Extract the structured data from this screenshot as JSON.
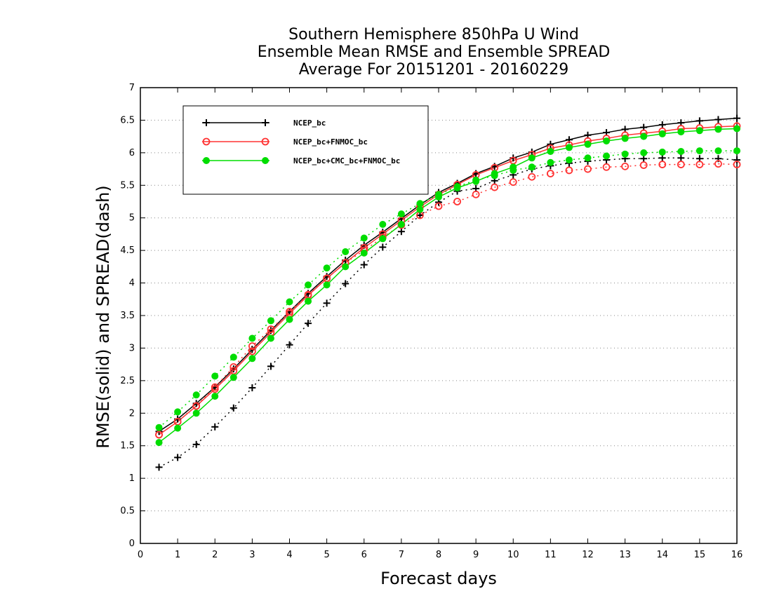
{
  "chart_data": {
    "type": "line",
    "title_lines": [
      "Southern Hemisphere 850hPa U Wind",
      "Ensemble Mean RMSE and Ensemble SPREAD",
      "Average For 20151201 - 20160229"
    ],
    "xlabel": "Forecast days",
    "ylabel": "RMSE(solid) and SPREAD(dash)",
    "xlim": [
      0,
      16
    ],
    "ylim": [
      0,
      7
    ],
    "x_ticks": [
      "0",
      "1",
      "2",
      "3",
      "4",
      "5",
      "6",
      "7",
      "8",
      "9",
      "10",
      "11",
      "12",
      "13",
      "14",
      "15",
      "16"
    ],
    "y_ticks": [
      "0",
      "0.5",
      "1",
      "1.5",
      "2",
      "2.5",
      "3",
      "3.5",
      "4",
      "4.5",
      "5",
      "5.5",
      "6",
      "6.5",
      "7"
    ],
    "grid": "horizontal dotted",
    "legend_position": "top-left",
    "x": [
      0.5,
      1,
      1.5,
      2,
      2.5,
      3,
      3.5,
      4,
      4.5,
      5,
      5.5,
      6,
      6.5,
      7,
      7.5,
      8,
      8.5,
      9,
      9.5,
      10,
      10.5,
      11,
      11.5,
      12,
      12.5,
      13,
      13.5,
      14,
      14.5,
      15,
      15.5,
      16
    ],
    "series": [
      {
        "name": "NCEP_bc",
        "color": "#000000",
        "marker": "plus",
        "rmse": [
          1.72,
          1.91,
          2.15,
          2.4,
          2.68,
          2.98,
          3.27,
          3.56,
          3.84,
          4.1,
          4.35,
          4.58,
          4.78,
          4.99,
          5.2,
          5.39,
          5.53,
          5.68,
          5.79,
          5.92,
          6.01,
          6.13,
          6.2,
          6.27,
          6.31,
          6.36,
          6.39,
          6.43,
          6.46,
          6.49,
          6.51,
          6.53
        ],
        "spread": [
          1.17,
          1.32,
          1.52,
          1.79,
          2.08,
          2.39,
          2.72,
          3.05,
          3.38,
          3.69,
          3.99,
          4.28,
          4.55,
          4.79,
          5.04,
          5.24,
          5.41,
          5.45,
          5.57,
          5.66,
          5.75,
          5.8,
          5.84,
          5.87,
          5.89,
          5.91,
          5.91,
          5.92,
          5.92,
          5.91,
          5.91,
          5.89
        ]
      },
      {
        "name": "NCEP_bc+FNMOC_bc",
        "color": "#ff3333",
        "marker": "circle-open",
        "rmse": [
          1.67,
          1.87,
          2.11,
          2.37,
          2.65,
          2.95,
          3.24,
          3.53,
          3.81,
          4.07,
          4.31,
          4.54,
          4.75,
          4.96,
          5.17,
          5.36,
          5.51,
          5.66,
          5.77,
          5.88,
          5.97,
          6.07,
          6.12,
          6.18,
          6.22,
          6.27,
          6.3,
          6.33,
          6.37,
          6.38,
          6.4,
          6.41
        ],
        "spread": [
          1.67,
          1.87,
          2.11,
          2.4,
          2.71,
          3.03,
          3.29,
          3.56,
          3.82,
          4.07,
          4.31,
          4.5,
          4.7,
          4.89,
          5.04,
          5.18,
          5.25,
          5.36,
          5.47,
          5.55,
          5.63,
          5.68,
          5.73,
          5.75,
          5.78,
          5.79,
          5.81,
          5.82,
          5.82,
          5.82,
          5.83,
          5.82
        ]
      },
      {
        "name": "NCEP_bc+CMC_bc+FNMOC_bc",
        "color": "#00dd00",
        "marker": "circle-filled",
        "rmse": [
          1.55,
          1.77,
          2.0,
          2.26,
          2.55,
          2.84,
          3.15,
          3.44,
          3.72,
          3.97,
          4.25,
          4.46,
          4.68,
          4.9,
          5.13,
          5.32,
          5.46,
          5.56,
          5.68,
          5.78,
          5.92,
          6.02,
          6.08,
          6.13,
          6.18,
          6.22,
          6.25,
          6.29,
          6.32,
          6.34,
          6.36,
          6.37
        ],
        "spread": [
          1.78,
          2.02,
          2.28,
          2.57,
          2.86,
          3.15,
          3.42,
          3.71,
          3.97,
          4.23,
          4.48,
          4.69,
          4.9,
          5.06,
          5.22,
          5.36,
          5.48,
          5.58,
          5.65,
          5.73,
          5.78,
          5.85,
          5.89,
          5.92,
          5.95,
          5.98,
          6.0,
          6.01,
          6.02,
          6.03,
          6.03,
          6.03
        ]
      }
    ]
  }
}
